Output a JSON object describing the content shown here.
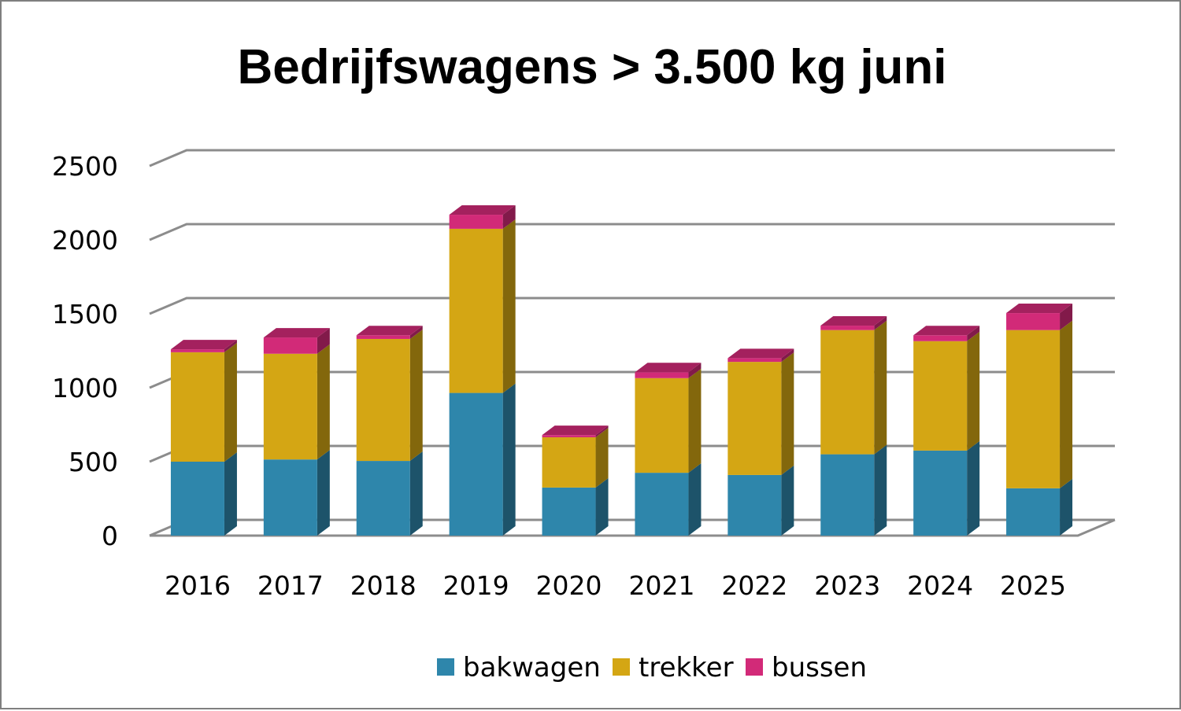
{
  "chart_data": {
    "type": "bar",
    "stacked": true,
    "three_d": true,
    "title": "Bedrijfswagens > 3.500 kg juni",
    "xlabel": "",
    "ylabel": "",
    "categories": [
      "2016",
      "2017",
      "2018",
      "2019",
      "2020",
      "2021",
      "2022",
      "2023",
      "2024",
      "2025"
    ],
    "series": [
      {
        "name": "bakwagen",
        "color": "#2e86ab",
        "values": [
          500,
          515,
          505,
          965,
          325,
          425,
          410,
          550,
          575,
          320
        ]
      },
      {
        "name": "trekker",
        "color": "#d4a614",
        "values": [
          740,
          715,
          825,
          1110,
          340,
          640,
          765,
          840,
          740,
          1070
        ]
      },
      {
        "name": "bussen",
        "color": "#d22a78",
        "values": [
          20,
          110,
          25,
          95,
          15,
          40,
          25,
          30,
          40,
          115
        ]
      }
    ],
    "ylim": [
      0,
      2500
    ],
    "yticks": [
      "0",
      "500",
      "1000",
      "1500",
      "2000",
      "2500"
    ],
    "grid": true,
    "legend_position": "bottom"
  }
}
